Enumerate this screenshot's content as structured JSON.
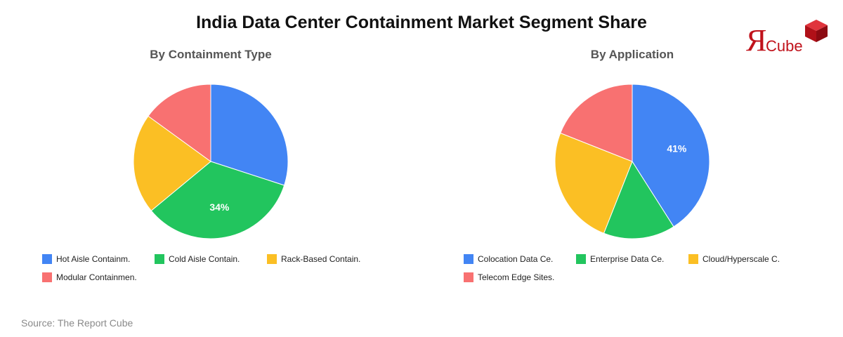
{
  "title": "India Data Center Containment Market Segment Share",
  "source": "Source: The Report Cube",
  "logo": {
    "mark": "Я",
    "text": "Cube"
  },
  "colors": {
    "blue": "#4285f4",
    "green": "#22c55e",
    "yellow": "#fbbf24",
    "red": "#f87171",
    "brand": "#c0121b"
  },
  "chart_data": [
    {
      "type": "pie",
      "title": "By Containment Type",
      "categories": [
        "Hot Aisle Containm.",
        "Cold Aisle Contain.",
        "Rack-Based Contain.",
        "Modular Containmen."
      ],
      "values": [
        30,
        34,
        21,
        15
      ],
      "data_labels": [
        "",
        "34%",
        "",
        ""
      ],
      "colors": [
        "#4285f4",
        "#22c55e",
        "#fbbf24",
        "#f87171"
      ],
      "legend": "bottom"
    },
    {
      "type": "pie",
      "title": "By Application",
      "categories": [
        "Colocation Data Ce.",
        "Enterprise Data Ce.",
        "Cloud/Hyperscale C.",
        "Telecom Edge Sites."
      ],
      "values": [
        41,
        15,
        25,
        19
      ],
      "data_labels": [
        "41%",
        "",
        "",
        ""
      ],
      "colors": [
        "#4285f4",
        "#22c55e",
        "#fbbf24",
        "#f87171"
      ],
      "legend": "bottom"
    }
  ]
}
